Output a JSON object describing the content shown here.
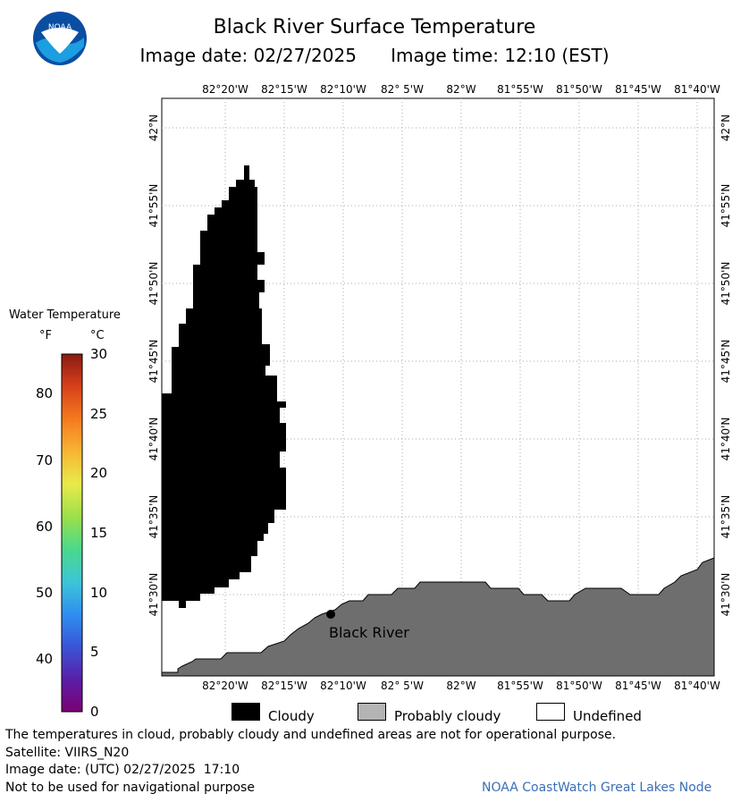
{
  "header": {
    "title": "Black River Surface Temperature",
    "image_date_label": "Image date: 02/27/2025",
    "image_time_label": "Image time: 12:10 (EST)"
  },
  "logo": {
    "text": "NOAA",
    "icon": "noaa-logo-icon"
  },
  "map": {
    "lon_labels": [
      "82°20'W",
      "82°15'W",
      "82°10'W",
      "82° 5'W",
      "82°W",
      "81°55'W",
      "81°50'W",
      "81°45'W",
      "81°40'W"
    ],
    "lat_labels": [
      "42°N",
      "41°55'N",
      "41°50'N",
      "41°45'N",
      "41°40'N",
      "41°35'N",
      "41°30'N"
    ],
    "place_label": "Black River",
    "colors": {
      "cloudy": "#000000",
      "land": "#6e6e6e",
      "water": "#ffffff",
      "grid": "#aaaaaa"
    }
  },
  "legend": {
    "title": "Water Temperature",
    "unit_f": "°F",
    "unit_c": "°C",
    "f_values": [
      "80",
      "70",
      "60",
      "50",
      "40"
    ],
    "c_values": [
      "30",
      "25",
      "20",
      "15",
      "10",
      "5",
      "0"
    ],
    "colormap": [
      "#7b0073",
      "#5a1fa8",
      "#3a55d8",
      "#2f8ff0",
      "#3cc6d8",
      "#4ad98a",
      "#9be04a",
      "#e8ea4a",
      "#f7b634",
      "#f57a1e",
      "#d8401a",
      "#8a1a12"
    ]
  },
  "key": {
    "cloudy": "Cloudy",
    "probably_cloudy": "Probably cloudy",
    "undefined": "Undefined",
    "colors": {
      "cloudy": "#000000",
      "probably_cloudy": "#b4b4b4",
      "undefined": "#ffffff"
    }
  },
  "footer": {
    "note": "The temperatures in cloud, probably cloudy and undefined areas are not for operational purpose.",
    "satellite": "Satellite: VIIRS_N20",
    "image_date_utc": "Image date: (UTC) 02/27/2025  17:10",
    "nav_note": "Not to be used for navigational purpose",
    "credit": "NOAA CoastWatch Great Lakes Node"
  }
}
